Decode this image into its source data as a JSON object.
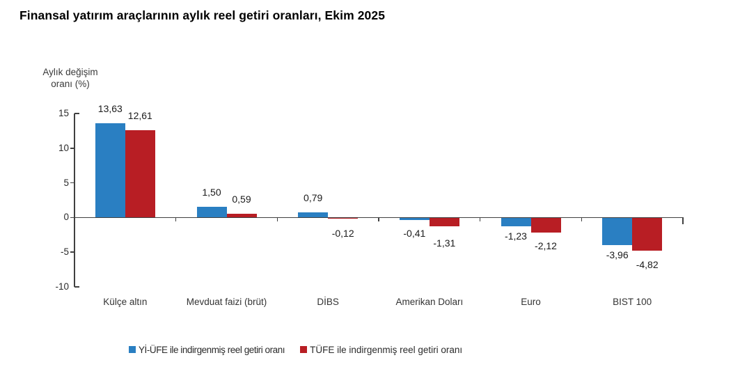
{
  "header": {
    "title": "Finansal yatırım araçlarının aylık reel getiri oranları, Ekim 2025"
  },
  "chart_data": {
    "type": "bar",
    "title": "Finansal yatırım araçlarının aylık reel getiri oranları, Ekim 2025",
    "ylabel": "Aylık değişim oranı (%)",
    "ylabel_lines": [
      "Aylık değişim",
      "oranı (%)"
    ],
    "xlabel": "",
    "ylim": [
      -10,
      15
    ],
    "yticks": [
      15,
      10,
      5,
      0,
      -5,
      -10
    ],
    "grid": false,
    "legend_position": "bottom",
    "axis_color": "#404040",
    "categories": [
      "Külçe altın",
      "Mevduat faizi (brüt)",
      "DİBS",
      "Amerikan Doları",
      "Euro",
      "BIST 100"
    ],
    "series": [
      {
        "name": "Yİ-ÜFE ile indirgenmiş reel getiri oranı",
        "color": "#2A7FC2",
        "values": [
          13.63,
          1.5,
          0.79,
          -0.41,
          -1.23,
          -3.96
        ],
        "value_labels": [
          "13,63",
          "1,50",
          "0,79",
          "-0,41",
          "-1,23",
          "-3,96"
        ]
      },
      {
        "name": "TÜFE ile indirgenmiş reel getiri oranı",
        "color": "#B81E24",
        "values": [
          12.61,
          0.59,
          -0.12,
          -1.31,
          -2.12,
          -4.82
        ],
        "value_labels": [
          "12,61",
          "0,59",
          "-0,12",
          "-1,31",
          "-2,12",
          "-4,82"
        ]
      }
    ]
  }
}
